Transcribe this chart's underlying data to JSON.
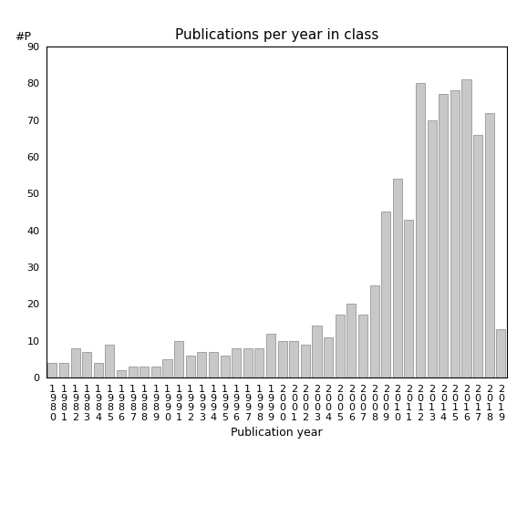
{
  "years": [
    "1980",
    "1981",
    "1982",
    "1983",
    "1984",
    "1985",
    "1986",
    "1987",
    "1988",
    "1989",
    "1990",
    "1991",
    "1992",
    "1993",
    "1994",
    "1995",
    "1996",
    "1997",
    "1998",
    "1999",
    "2000",
    "2001",
    "2002",
    "2003",
    "2004",
    "2005",
    "2006",
    "2007",
    "2008",
    "2009",
    "2010",
    "2011",
    "2012",
    "2013",
    "2014",
    "2015",
    "2016",
    "2017",
    "2018",
    "2019"
  ],
  "values": [
    4,
    4,
    8,
    7,
    4,
    9,
    2,
    3,
    3,
    3,
    5,
    10,
    6,
    7,
    7,
    6,
    8,
    8,
    8,
    12,
    10,
    10,
    9,
    14,
    11,
    17,
    20,
    17,
    25,
    45,
    54,
    43,
    80,
    70,
    77,
    78,
    81,
    66,
    72,
    13
  ],
  "title": "Publications per year in class",
  "xlabel": "Publication year",
  "ylabel": "#P",
  "ylim": [
    0,
    90
  ],
  "yticks": [
    0,
    10,
    20,
    30,
    40,
    50,
    60,
    70,
    80,
    90
  ],
  "bar_color": "#c8c8c8",
  "bar_edge_color": "#888888",
  "background_color": "#ffffff",
  "title_fontsize": 11,
  "label_fontsize": 9,
  "tick_fontsize": 8
}
